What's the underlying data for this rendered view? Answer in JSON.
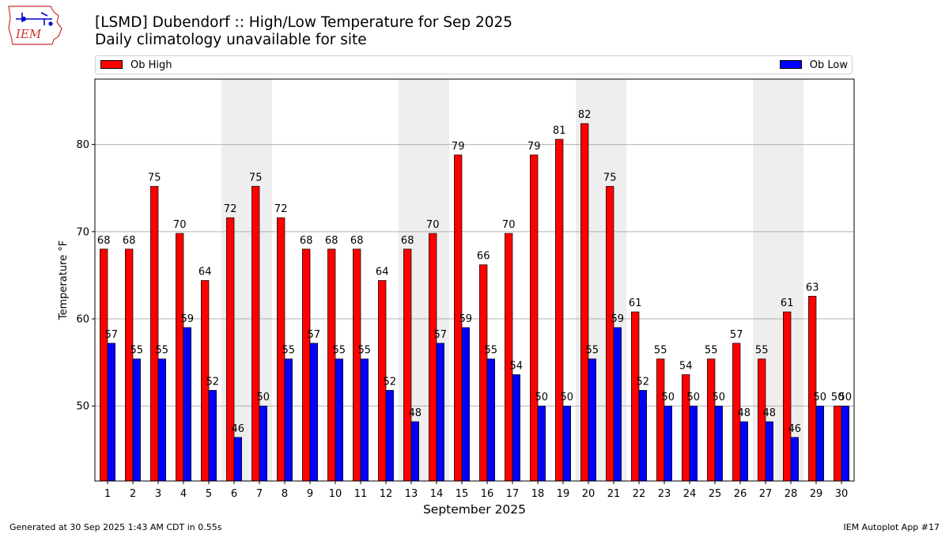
{
  "logo": {
    "text": "IEM"
  },
  "header": {
    "title": "[LSMD] Dubendorf :: High/Low Temperature for Sep 2025",
    "subtitle": "Daily climatology unavailable for site"
  },
  "footer": {
    "left": "Generated at 30 Sep 2025 1:43 AM CDT in 0.55s",
    "right": "IEM Autoplot App #17"
  },
  "chart_data": {
    "type": "bar",
    "title": "[LSMD] Dubendorf :: High/Low Temperature for Sep 2025",
    "subtitle": "Daily climatology unavailable for site",
    "xlabel": "September 2025",
    "ylabel": "Temperature °F",
    "ylim": [
      41.4,
      87.5
    ],
    "yticks": [
      50,
      60,
      70,
      80
    ],
    "grid": "y",
    "legend_placement": "top (above plot)",
    "weekend_shading": [
      [
        6,
        7
      ],
      [
        13,
        14
      ],
      [
        20,
        21
      ],
      [
        27,
        28
      ]
    ],
    "weekend_color": "#eeeeee",
    "categories": [
      "1",
      "2",
      "3",
      "4",
      "5",
      "6",
      "7",
      "8",
      "9",
      "10",
      "11",
      "12",
      "13",
      "14",
      "15",
      "16",
      "17",
      "18",
      "19",
      "20",
      "21",
      "22",
      "23",
      "24",
      "25",
      "26",
      "27",
      "28",
      "29",
      "30"
    ],
    "series": [
      {
        "name": "Ob High",
        "color": "#ff0000",
        "values": [
          68.0,
          68.0,
          75.2,
          69.8,
          64.4,
          71.6,
          75.2,
          71.6,
          68.0,
          68.0,
          68.0,
          64.4,
          68.0,
          69.8,
          78.8,
          66.2,
          69.8,
          78.8,
          80.6,
          82.4,
          75.2,
          60.8,
          55.4,
          53.6,
          55.4,
          57.2,
          55.4,
          60.8,
          62.6,
          50.0
        ],
        "labels": [
          "68",
          "68",
          "75",
          "70",
          "64",
          "72",
          "75",
          "72",
          "68",
          "68",
          "68",
          "64",
          "68",
          "70",
          "79",
          "66",
          "70",
          "79",
          "81",
          "82",
          "75",
          "61",
          "55",
          "54",
          "55",
          "57",
          "55",
          "61",
          "63",
          "50"
        ]
      },
      {
        "name": "Ob Low",
        "color": "#0000ff",
        "values": [
          57.2,
          55.4,
          55.4,
          59.0,
          51.8,
          46.4,
          50.0,
          55.4,
          57.2,
          55.4,
          55.4,
          51.8,
          48.2,
          57.2,
          59.0,
          55.4,
          53.6,
          50.0,
          50.0,
          55.4,
          59.0,
          51.8,
          50.0,
          50.0,
          50.0,
          48.2,
          48.2,
          46.4,
          50.0,
          50.0
        ],
        "labels": [
          "57",
          "55",
          "55",
          "59",
          "52",
          "46",
          "50",
          "55",
          "57",
          "55",
          "55",
          "52",
          "48",
          "57",
          "59",
          "55",
          "54",
          "50",
          "50",
          "55",
          "59",
          "52",
          "50",
          "50",
          "50",
          "48",
          "48",
          "46",
          "50",
          "50"
        ]
      }
    ]
  }
}
